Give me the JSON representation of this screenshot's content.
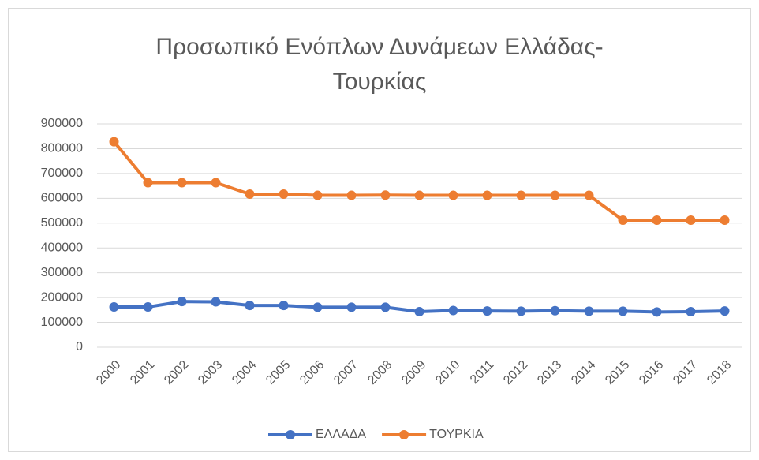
{
  "chart_data": {
    "type": "line",
    "title": "Προσωπικό Ενόπλων Δυνάμεων Ελλάδας-Τουρκίας",
    "categories": [
      "2000",
      "2001",
      "2002",
      "2003",
      "2004",
      "2005",
      "2006",
      "2007",
      "2008",
      "2009",
      "2010",
      "2011",
      "2012",
      "2013",
      "2014",
      "2015",
      "2016",
      "2017",
      "2018"
    ],
    "series": [
      {
        "name": "ΕΛΛΑΔΑ",
        "color": "#4472c4",
        "values": [
          162000,
          162000,
          184000,
          183000,
          168000,
          168000,
          161000,
          161000,
          161000,
          143000,
          148000,
          146000,
          145000,
          147000,
          145000,
          145000,
          142000,
          143000,
          146000
        ]
      },
      {
        "name": "ΤΟΥΡΚΙΑ",
        "color": "#ed7d31",
        "values": [
          828000,
          663000,
          663000,
          663000,
          617000,
          617000,
          612000,
          612000,
          613000,
          612000,
          612000,
          612000,
          612000,
          612000,
          612000,
          512000,
          512000,
          512000,
          512000
        ]
      }
    ],
    "ylim": [
      0,
      900000
    ],
    "yticks": [
      0,
      100000,
      200000,
      300000,
      400000,
      500000,
      600000,
      700000,
      800000,
      900000
    ],
    "grid": true,
    "legend": "bottom"
  }
}
